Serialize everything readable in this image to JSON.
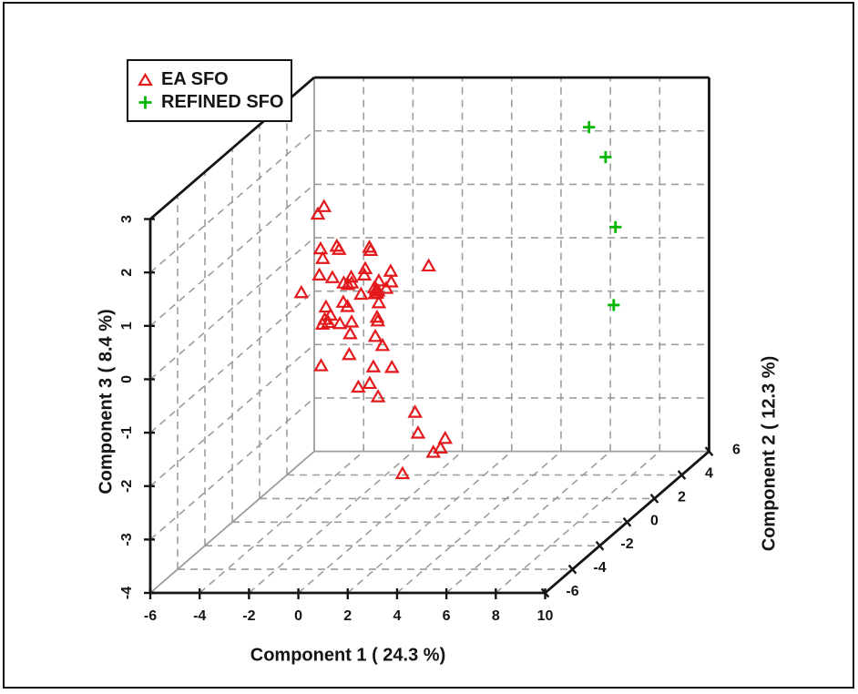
{
  "chart_data": {
    "type": "scatter",
    "subtype": "3d-scatter-pca",
    "title": "",
    "note": "3D PCA score plot; point coordinates are the on-screen projected positions expressed in Component-1 (horizontal) and Component-3 (vertical) axis units of the front plane",
    "axes": {
      "c1": {
        "label": "Component 1 ( 24.3 %)",
        "ticks": [
          -6,
          -4,
          -2,
          0,
          2,
          4,
          6,
          8,
          10
        ],
        "range": [
          -6,
          10
        ]
      },
      "c2": {
        "label": "Component 2 ( 12.3 %)",
        "ticks": [
          -6,
          -4,
          -2,
          0,
          2,
          4,
          6
        ],
        "range": [
          -6,
          6
        ]
      },
      "c3": {
        "label": "Component 3 ( 8.4 %)",
        "ticks": [
          3,
          2,
          1,
          0,
          -1,
          -2,
          -3,
          -4
        ],
        "range": [
          -4,
          3
        ]
      }
    },
    "grid": {
      "on": true,
      "step": 2,
      "style": "dashed"
    },
    "legend": {
      "position": "top-left"
    },
    "series": [
      {
        "name": "EA SFO",
        "marker": "triangle",
        "color": "#e3191c",
        "points": [
          [
            1.04,
            3.23
          ],
          [
            0.79,
            3.09
          ],
          [
            0.9,
            2.44
          ],
          [
            0.99,
            2.26
          ],
          [
            1.56,
            2.49
          ],
          [
            1.65,
            2.43
          ],
          [
            2.88,
            2.47
          ],
          [
            2.93,
            2.41
          ],
          [
            5.28,
            2.12
          ],
          [
            0.85,
            1.95
          ],
          [
            1.38,
            1.9
          ],
          [
            2.14,
            1.91
          ],
          [
            2.71,
            2.07
          ],
          [
            2.67,
            1.95
          ],
          [
            1.84,
            1.8
          ],
          [
            2.01,
            1.77
          ],
          [
            2.16,
            1.8
          ],
          [
            2.54,
            1.59
          ],
          [
            3.26,
            1.84
          ],
          [
            3.08,
            1.71
          ],
          [
            3.23,
            1.65
          ],
          [
            3.1,
            1.6
          ],
          [
            3.16,
            1.68
          ],
          [
            3.18,
            1.61
          ],
          [
            3.74,
            2.02
          ],
          [
            3.76,
            1.82
          ],
          [
            3.56,
            1.7
          ],
          [
            0.12,
            1.62
          ],
          [
            1.82,
            1.44
          ],
          [
            3.26,
            1.43
          ],
          [
            1.12,
            1.35
          ],
          [
            1.99,
            1.36
          ],
          [
            1.3,
            1.2
          ],
          [
            1.07,
            1.12
          ],
          [
            1.22,
            1.06
          ],
          [
            0.98,
            1.03
          ],
          [
            1.68,
            1.04
          ],
          [
            2.16,
            1.07
          ],
          [
            3.19,
            1.16
          ],
          [
            3.22,
            1.09
          ],
          [
            2.1,
            0.85
          ],
          [
            3.12,
            0.8
          ],
          [
            3.41,
            0.63
          ],
          [
            2.06,
            0.46
          ],
          [
            0.92,
            0.25
          ],
          [
            3.04,
            0.23
          ],
          [
            3.79,
            0.22
          ],
          [
            2.43,
            -0.15
          ],
          [
            2.89,
            -0.08
          ],
          [
            3.23,
            -0.33
          ],
          [
            4.73,
            -0.62
          ],
          [
            4.85,
            -1.01
          ],
          [
            5.95,
            -1.11
          ],
          [
            5.76,
            -1.29
          ],
          [
            5.47,
            -1.37
          ],
          [
            4.22,
            -1.77
          ]
        ]
      },
      {
        "name": "REFINED SFO",
        "marker": "plus",
        "color": "#00b800",
        "points": [
          [
            11.78,
            4.72
          ],
          [
            12.45,
            4.16
          ],
          [
            12.85,
            2.85
          ],
          [
            12.78,
            1.39
          ]
        ]
      }
    ],
    "colors": {
      "box_edge": "#141414",
      "inner_edge": "#9c9c9c",
      "gridline": "#9c9c9c",
      "text": "#151515",
      "background": "#ffffff"
    }
  },
  "legend": {
    "items": [
      {
        "label": "EA SFO",
        "marker": "triangle",
        "color": "#e3191c"
      },
      {
        "label": "REFINED SFO",
        "marker": "plus",
        "color": "#00b800"
      }
    ]
  },
  "axis_titles": {
    "x": "Component 1 ( 24.3 %)",
    "y": "Component 2 ( 12.3 %)",
    "z": "Component 3 ( 8.4 %)"
  }
}
